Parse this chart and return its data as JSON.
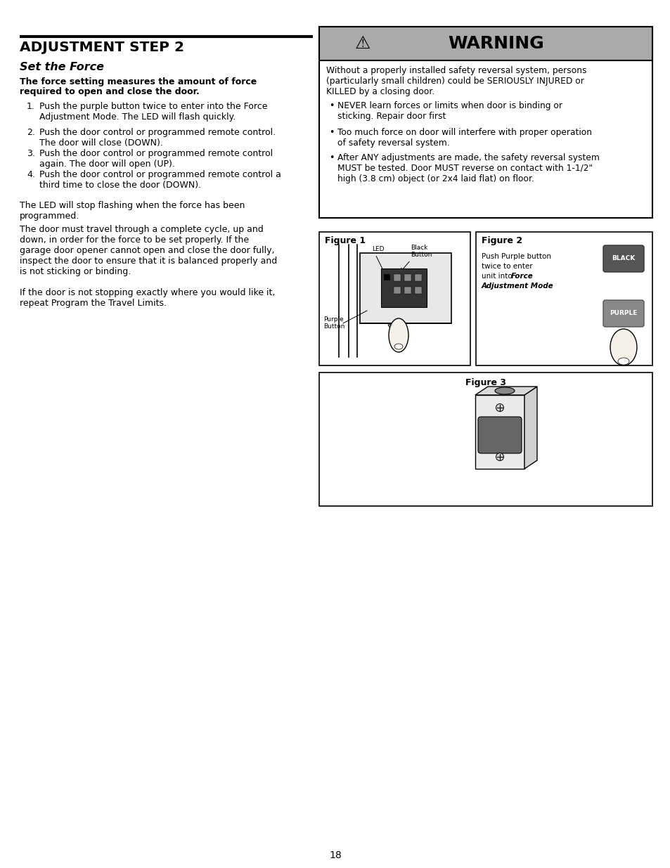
{
  "page_bg": "#ffffff",
  "title": "ADJUSTMENT STEP 2",
  "subtitle": "Set the Force",
  "bold_intro_line1": "The force setting measures the amount of force",
  "bold_intro_line2": "required to open and close the door.",
  "step1_num": "1.",
  "step1_text": "Push the purple button twice to enter into the Force\nAdjustment Mode. The LED will flash quickly.",
  "step2_num": "2.",
  "step2_text": "Push the door control or programmed remote control.\nThe door will close (DOWN).",
  "step3_num": "3.",
  "step3_text": "Push the door control or programmed remote control\nagain. The door will open (UP).",
  "step4_num": "4.",
  "step4_text": "Push the door control or programmed remote control a\nthird time to close the door (DOWN).",
  "para1": "The LED will stop flashing when the force has been\nprogrammed.",
  "para2": "The door must travel through a complete cycle, up and\ndown, in order for the force to be set properly. If the\ngarage door opener cannot open and close the door fully,\ninspect the door to ensure that it is balanced properly and\nis not sticking or binding.",
  "para3": "If the door is not stopping exactly where you would like it,\nrepeat Program the Travel Limits.",
  "warning_title": "WARNING",
  "warning_intro": "Without a properly installed safety reversal system, persons\n(particularly small children) could be SERIOUSLY INJURED or\nKILLED by a closing door.",
  "warn_bullet1": "NEVER learn forces or limits when door is binding or\nsticking. Repair door first",
  "warn_bullet2": "Too much force on door will interfere with proper operation\nof safety reversal system.",
  "warn_bullet3": "After ANY adjustments are made, the safety reversal system\nMUST be tested. Door MUST reverse on contact with 1-1/2\"\nhigh (3.8 cm) object (or 2x4 laid flat) on floor.",
  "fig1_label": "Figure 1",
  "fig2_label": "Figure 2",
  "fig3_label": "Figure 3",
  "fig2_line1": "Push Purple button",
  "fig2_line2": "twice to enter",
  "fig2_line3": "unit into ",
  "fig2_line3b": "Force",
  "fig2_line4": "Adjustment Mode",
  "led_label": "LED",
  "black_btn_label": "Black\nButton",
  "purple_btn_label": "Purple\nButton",
  "page_number": "18",
  "warn_header_color": "#aaaaaa",
  "warn_body_bg": "#ffffff",
  "black_btn_color": "#666666",
  "purple_btn_color": "#888888",
  "fig_border_color": "#000000",
  "text_color": "#000000"
}
